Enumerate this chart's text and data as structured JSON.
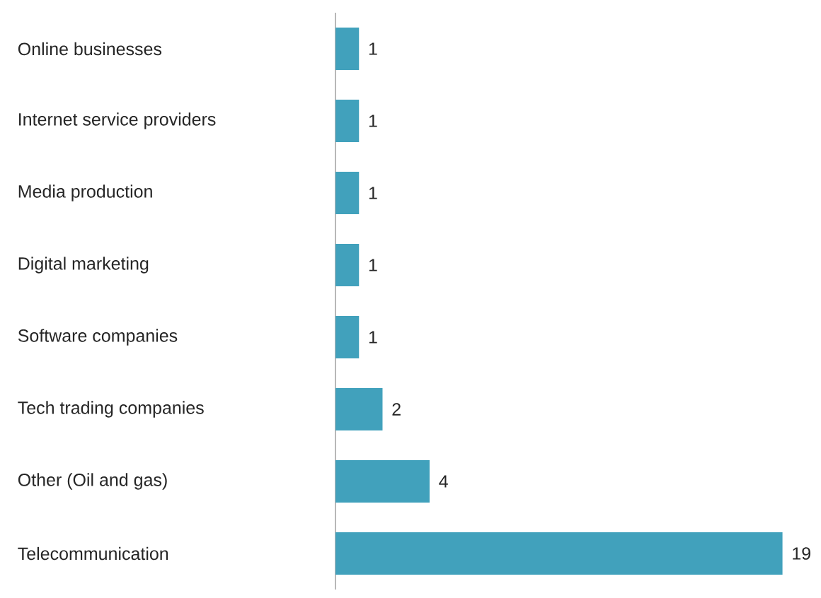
{
  "chart_data": {
    "type": "bar",
    "orientation": "horizontal",
    "categories": [
      "Online businesses",
      "Internet service providers",
      "Media production",
      "Digital marketing",
      "Software companies",
      "Tech trading companies",
      "Other (Oil and gas)",
      "Telecommunication"
    ],
    "values": [
      1,
      1,
      1,
      1,
      1,
      2,
      4,
      19
    ],
    "color": "#41a1bc",
    "data_labels": true
  }
}
